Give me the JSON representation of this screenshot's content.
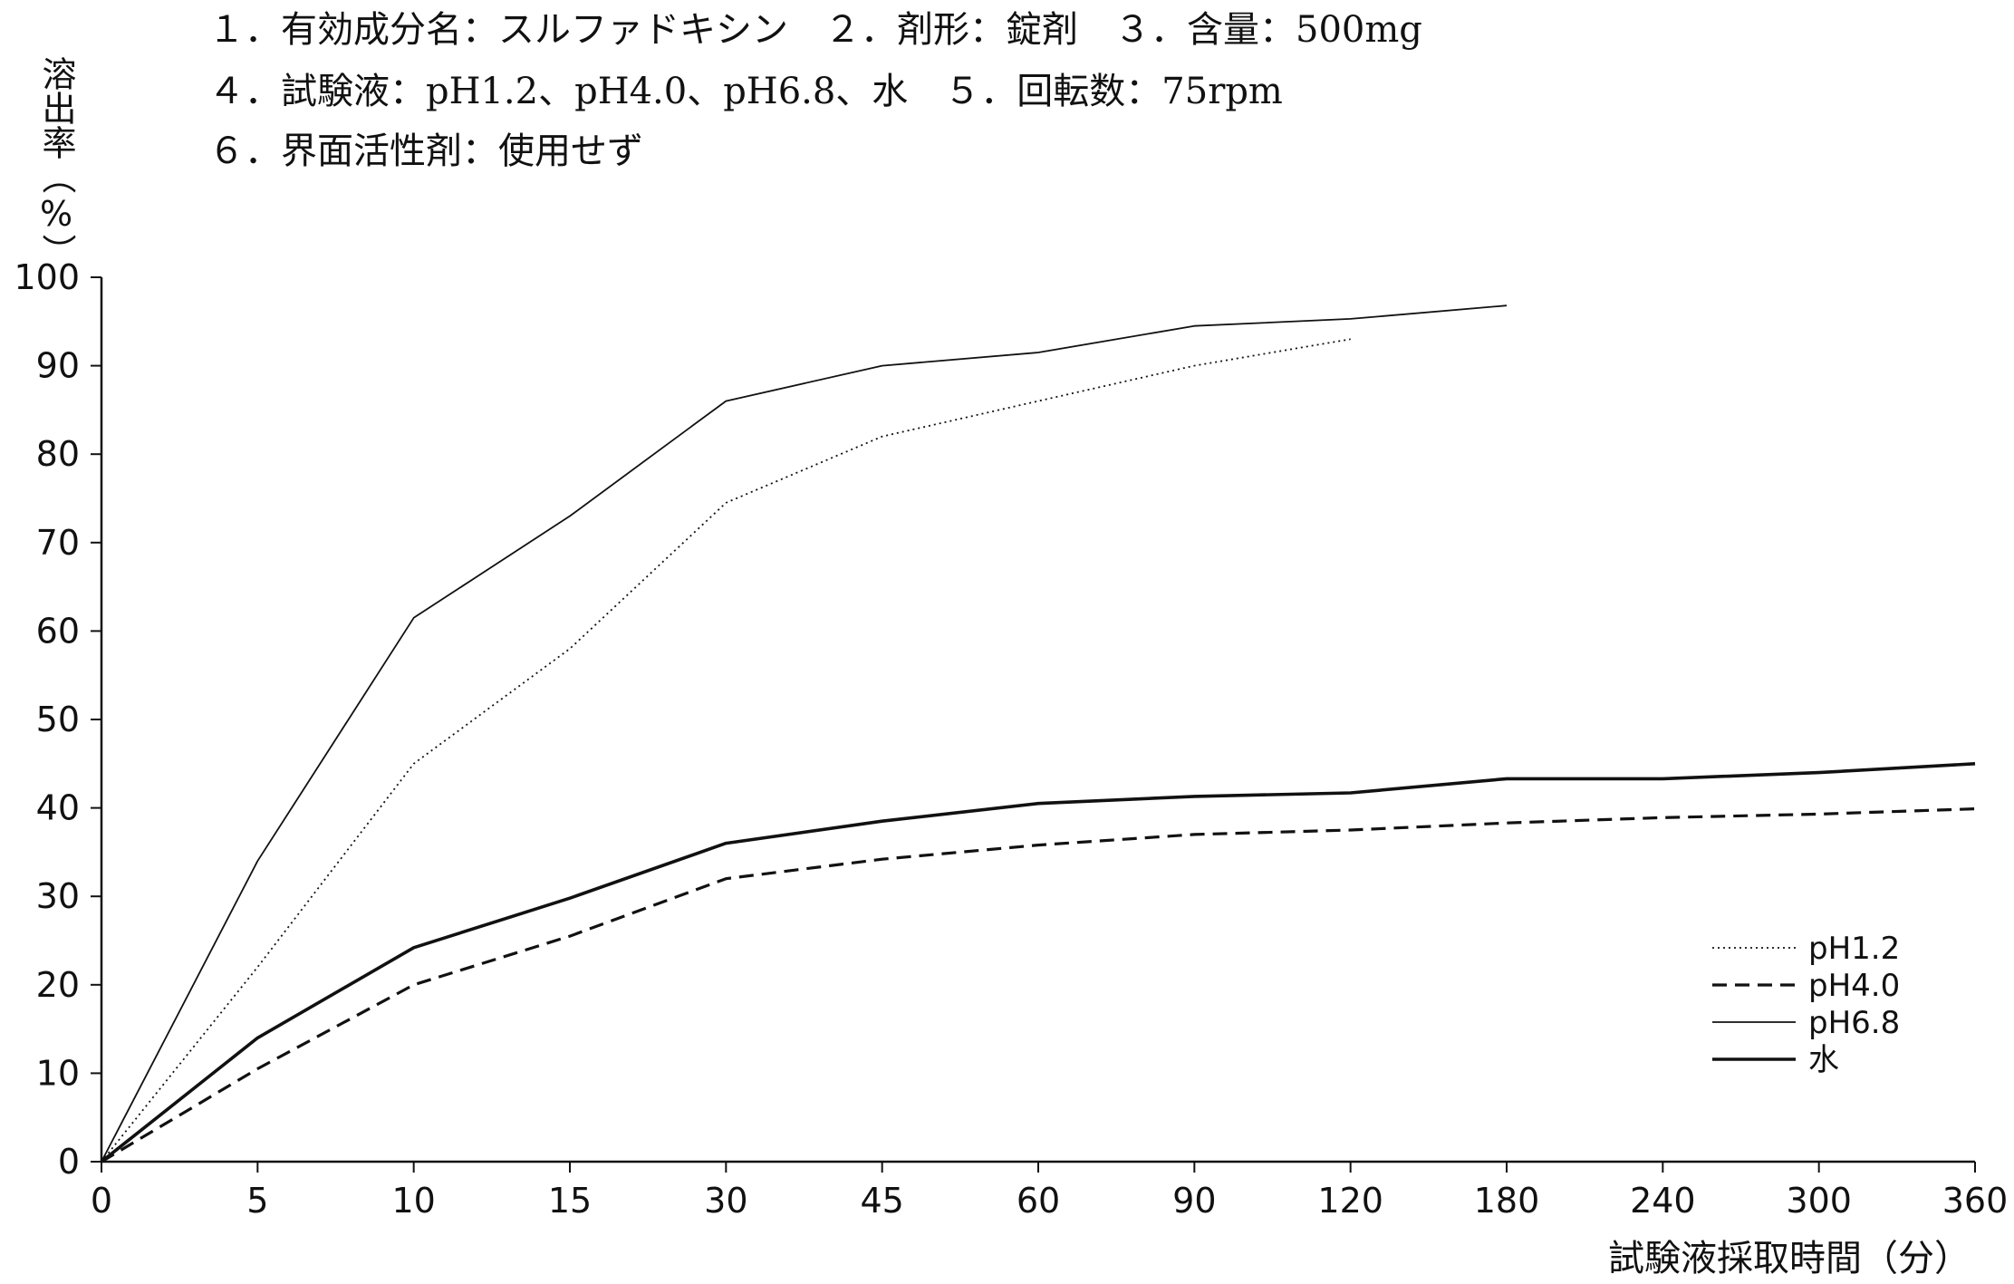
{
  "header": {
    "line1": "１．有効成分名：スルファドキシン　２．剤形：錠剤　３．含量：500mg",
    "line2": "４．試験液：pH1.2、pH4.0、pH6.8、水　５．回転数：75rpm",
    "line3": "６．界面活性剤：使用せず"
  },
  "chart_data": {
    "type": "line",
    "ylabel": "溶出率（%）",
    "xlabel": "試験液採取時間（分）",
    "categories": [
      "0",
      "5",
      "10",
      "15",
      "30",
      "45",
      "60",
      "90",
      "120",
      "180",
      "240",
      "300",
      "360"
    ],
    "yticks": [
      0,
      10,
      20,
      30,
      40,
      50,
      60,
      70,
      80,
      90,
      100
    ],
    "ylim": [
      0,
      100
    ],
    "grid": false,
    "legend_position": "bottom-right",
    "series": [
      {
        "name": "pH1.2",
        "style": "dotted",
        "x": [
          "0",
          "5",
          "10",
          "15",
          "30",
          "45",
          "60",
          "90",
          "120"
        ],
        "values": [
          0,
          22,
          45,
          58,
          74.5,
          82,
          86,
          90,
          93
        ]
      },
      {
        "name": "pH4.0",
        "style": "dashed",
        "x": [
          "0",
          "5",
          "10",
          "15",
          "30",
          "45",
          "60",
          "90",
          "120",
          "180",
          "240",
          "300",
          "360"
        ],
        "values": [
          0,
          10.5,
          20,
          25.5,
          32,
          34.2,
          35.8,
          37,
          37.5,
          38.3,
          38.9,
          39.3,
          39.9
        ]
      },
      {
        "name": "pH6.8",
        "style": "thin",
        "x": [
          "0",
          "5",
          "10",
          "15",
          "30",
          "45",
          "60",
          "90",
          "120",
          "180"
        ],
        "values": [
          0,
          34,
          61.5,
          73,
          86,
          90,
          91.5,
          94.5,
          95.3,
          96.8
        ]
      },
      {
        "name": "水",
        "style": "thick",
        "x": [
          "0",
          "5",
          "10",
          "15",
          "30",
          "45",
          "60",
          "90",
          "120",
          "180",
          "240",
          "300",
          "360"
        ],
        "values": [
          0,
          14,
          24.2,
          29.8,
          36,
          38.5,
          40.5,
          41.3,
          41.7,
          43.3,
          43.3,
          44,
          45
        ]
      }
    ]
  }
}
